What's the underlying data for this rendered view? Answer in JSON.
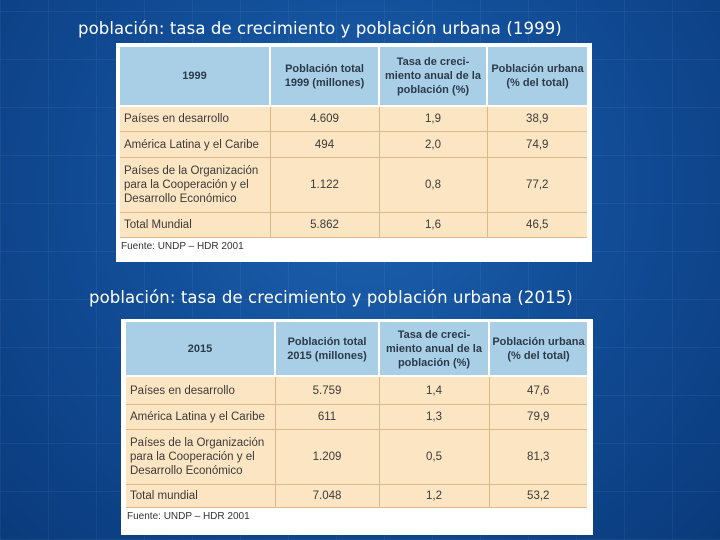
{
  "captions": {
    "first": "población: tasa de crecimiento y población urbana (1999)",
    "second": "población: tasa de crecimiento y población urbana (2015)"
  },
  "tables": [
    {
      "year": "1999",
      "headers": {
        "col1": "Población total 1999 (millones)",
        "col2": "Tasa de creci-miento anual de la población (%)",
        "col3": "Población urbana (% del total)"
      },
      "rows": [
        {
          "label": "Países en desarrollo",
          "pop": "4.609",
          "rate": "1,9",
          "urban": "38,9"
        },
        {
          "label": "América Latina y el Caribe",
          "pop": "494",
          "rate": "2,0",
          "urban": "74,9"
        },
        {
          "label": "Países de la Organización para la Cooperación y el Desarrollo Económico",
          "pop": "1.122",
          "rate": "0,8",
          "urban": "77,2"
        },
        {
          "label": "Total Mundial",
          "pop": "5.862",
          "rate": "1,6",
          "urban": "46,5"
        }
      ],
      "source": "Fuente: UNDP – HDR 2001"
    },
    {
      "year": "2015",
      "headers": {
        "col1": "Población total 2015 (millones)",
        "col2": "Tasa de creci-miento anual de la población (%)",
        "col3": "Población urbana (% del total)"
      },
      "rows": [
        {
          "label": "Países en desarrollo",
          "pop": "5.759",
          "rate": "1,4",
          "urban": "47,6"
        },
        {
          "label": "América Latina y el Caribe",
          "pop": "611",
          "rate": "1,3",
          "urban": "79,9"
        },
        {
          "label": "Países de la Organización para la Cooperación y el Desarrollo Económico",
          "pop": "1.209",
          "rate": "0,5",
          "urban": "81,3"
        },
        {
          "label": "Total mundial",
          "pop": "7.048",
          "rate": "1,2",
          "urban": "53,2"
        }
      ],
      "source": "Fuente: UNDP – HDR 2001"
    }
  ]
}
